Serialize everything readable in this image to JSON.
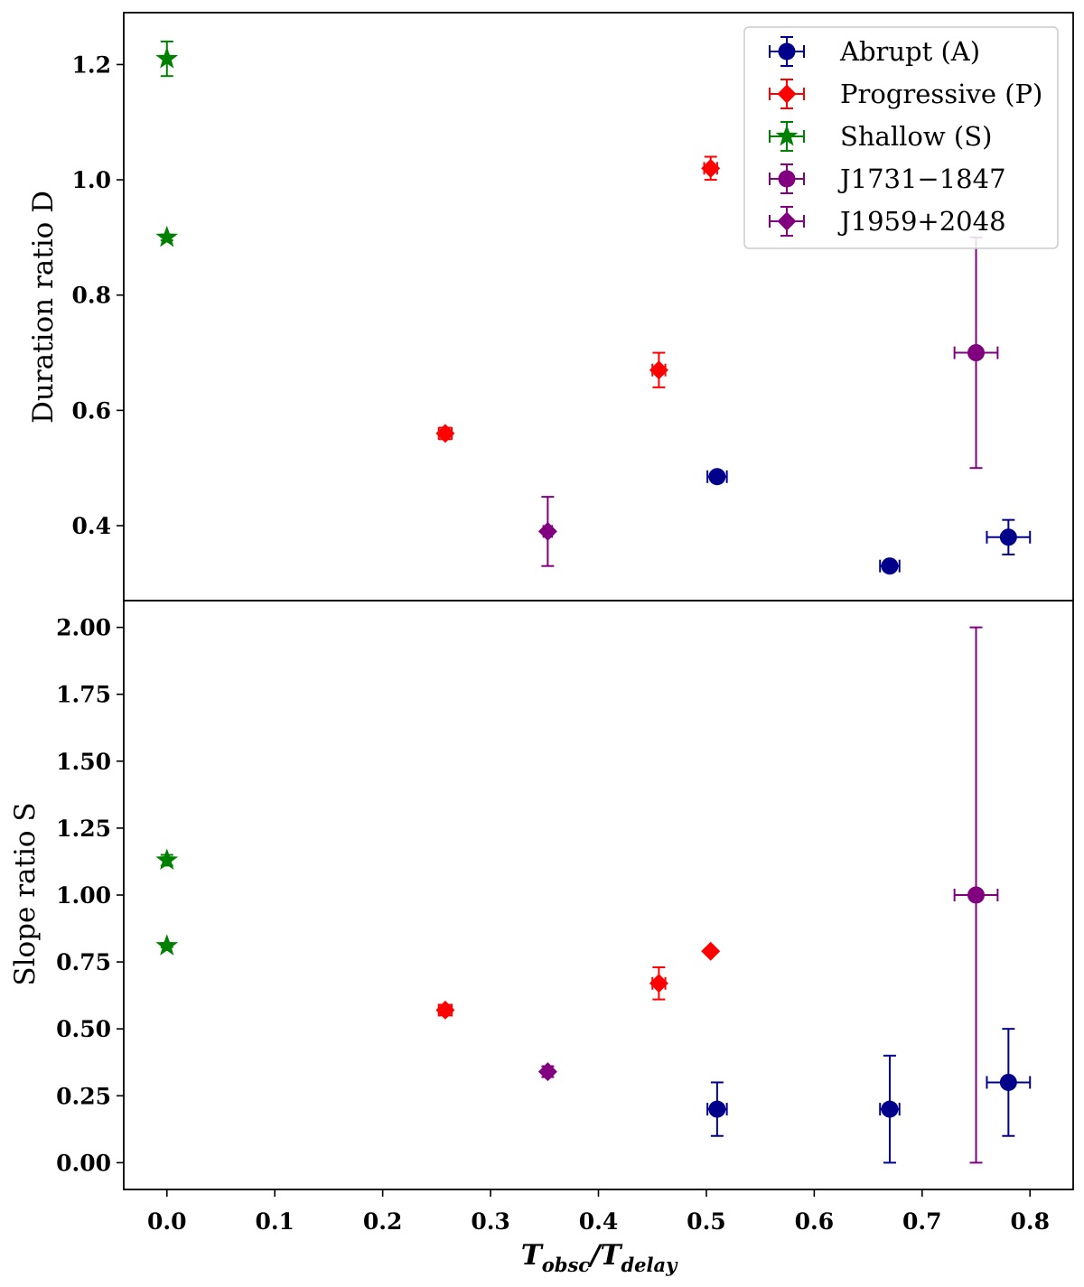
{
  "chart_data": {
    "type": "scatter",
    "shared_x": {
      "label_main": "T",
      "label_sub1": "obsc",
      "label_sep": "/T",
      "label_sub2": "delay",
      "range": [
        -0.04,
        0.84
      ],
      "ticks": [
        0.0,
        0.1,
        0.2,
        0.3,
        0.4,
        0.5,
        0.6,
        0.7,
        0.8
      ],
      "tick_labels": [
        "0.0",
        "0.1",
        "0.2",
        "0.3",
        "0.4",
        "0.5",
        "0.6",
        "0.7",
        "0.8"
      ]
    },
    "panels": [
      {
        "id": "duration",
        "ylabel": "Duration ratio D",
        "ylim": [
          0.27,
          1.29
        ],
        "yticks": [
          0.4,
          0.6,
          0.8,
          1.0,
          1.2
        ],
        "ytick_labels": [
          "0.4",
          "0.6",
          "0.8",
          "1.0",
          "1.2"
        ],
        "series": [
          {
            "name": "Abrupt (A)",
            "points": [
              {
                "x": 0.51,
                "y": 0.485,
                "xerr": 0.009,
                "yerr": 0.0
              },
              {
                "x": 0.67,
                "y": 0.33,
                "xerr": 0.009,
                "yerr": 0.0
              },
              {
                "x": 0.78,
                "y": 0.38,
                "xerr": 0.02,
                "yerr": 0.03
              }
            ]
          },
          {
            "name": "Progressive (P)",
            "points": [
              {
                "x": 0.258,
                "y": 0.56,
                "xerr": 0.006,
                "yerr": 0.01
              },
              {
                "x": 0.456,
                "y": 0.67,
                "xerr": 0.006,
                "yerr": 0.03
              },
              {
                "x": 0.504,
                "y": 1.02,
                "xerr": 0.006,
                "yerr": 0.02
              }
            ]
          },
          {
            "name": "Shallow (S)",
            "points": [
              {
                "x": 0.0,
                "y": 1.21,
                "xerr": 0.0,
                "yerr": 0.03
              },
              {
                "x": 0.0,
                "y": 0.9,
                "xerr": 0.0,
                "yerr": 0.005
              }
            ]
          },
          {
            "name": "J1731−1847",
            "points": [
              {
                "x": 0.75,
                "y": 0.7,
                "xerr": 0.02,
                "yerr": 0.2
              }
            ]
          },
          {
            "name": "J1959+2048",
            "points": [
              {
                "x": 0.353,
                "y": 0.39,
                "xerr": 0.004,
                "yerr": 0.06
              }
            ]
          }
        ]
      },
      {
        "id": "slope",
        "ylabel": "Slope ratio S",
        "ylim": [
          -0.1,
          2.1
        ],
        "yticks": [
          0.0,
          0.25,
          0.5,
          0.75,
          1.0,
          1.25,
          1.5,
          1.75,
          2.0
        ],
        "ytick_labels": [
          "0.00",
          "0.25",
          "0.50",
          "0.75",
          "1.00",
          "1.25",
          "1.50",
          "1.75",
          "2.00"
        ],
        "series": [
          {
            "name": "Abrupt (A)",
            "points": [
              {
                "x": 0.51,
                "y": 0.2,
                "xerr": 0.009,
                "yerr": 0.1
              },
              {
                "x": 0.67,
                "y": 0.2,
                "xerr": 0.009,
                "yerr": 0.2
              },
              {
                "x": 0.78,
                "y": 0.3,
                "xerr": 0.02,
                "yerr": 0.2
              }
            ]
          },
          {
            "name": "Progressive (P)",
            "points": [
              {
                "x": 0.258,
                "y": 0.57,
                "xerr": 0.006,
                "yerr": 0.02
              },
              {
                "x": 0.456,
                "y": 0.67,
                "xerr": 0.006,
                "yerr": 0.06
              },
              {
                "x": 0.504,
                "y": 0.79,
                "xerr": 0.0,
                "yerr": 0.0
              }
            ]
          },
          {
            "name": "Shallow (S)",
            "points": [
              {
                "x": 0.0,
                "y": 1.13,
                "xerr": 0.0,
                "yerr": 0.02
              },
              {
                "x": 0.0,
                "y": 0.81,
                "xerr": 0.0,
                "yerr": 0.005
              }
            ]
          },
          {
            "name": "J1731−1847",
            "points": [
              {
                "x": 0.75,
                "y": 1.0,
                "xerr": 0.02,
                "yerr": 1.0
              }
            ]
          },
          {
            "name": "J1959+2048",
            "points": [
              {
                "x": 0.353,
                "y": 0.34,
                "xerr": 0.004,
                "yerr": 0.02
              }
            ]
          }
        ]
      }
    ],
    "legend": {
      "location": "top-right of upper panel",
      "entries": [
        {
          "label": "Abrupt (A)",
          "marker": "circle",
          "color": "#00008b"
        },
        {
          "label": "Progressive (P)",
          "marker": "diamond",
          "color": "#ff0000"
        },
        {
          "label": "Shallow (S)",
          "marker": "star",
          "color": "#008000"
        },
        {
          "label": "J1731−1847",
          "marker": "circle",
          "color": "#800080"
        },
        {
          "label": "J1959+2048",
          "marker": "diamond",
          "color": "#800080"
        }
      ]
    }
  }
}
